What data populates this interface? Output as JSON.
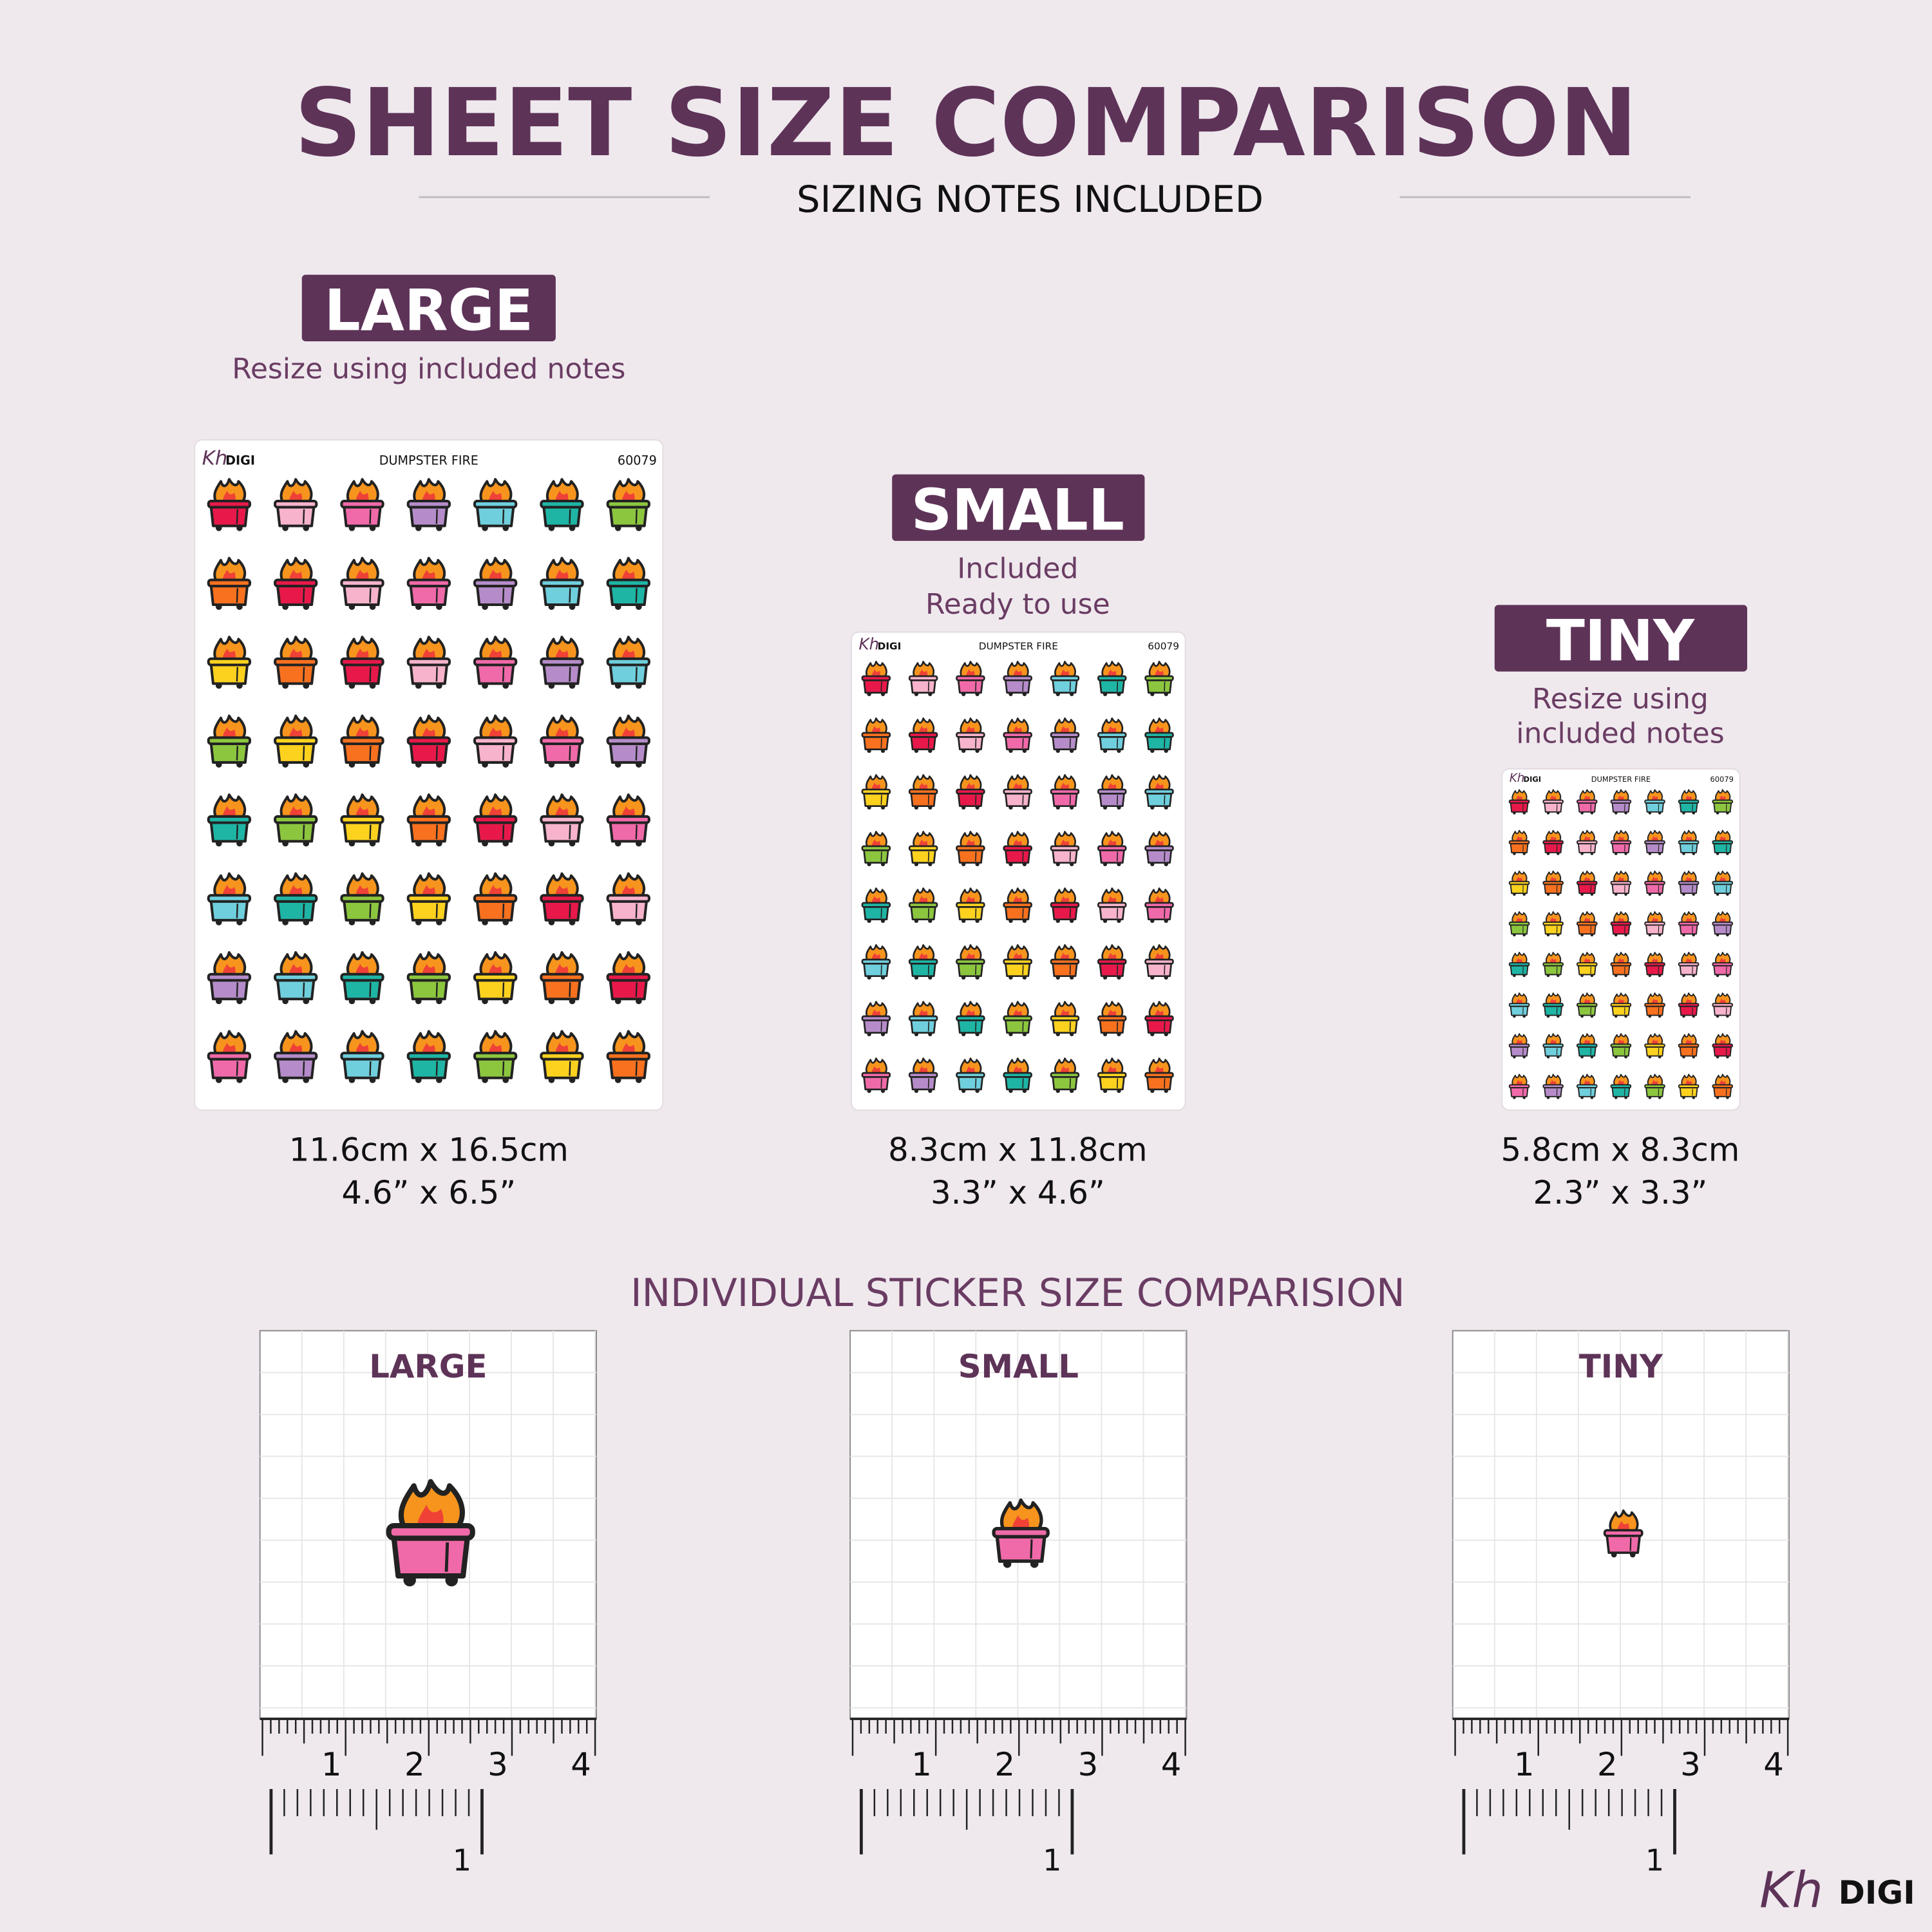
{
  "header": {
    "title": "SHEET SIZE COMPARISON",
    "subtitle": "SIZING NOTES INCLUDED"
  },
  "sheets": [
    {
      "label": "LARGE",
      "note": [
        "Resize using included notes"
      ],
      "sheet_title": "DUMPSTER FIRE",
      "sheet_code": "60079",
      "metric": "11.6cm x 16.5cm",
      "imperial": "4.6” x 6.5”"
    },
    {
      "label": "SMALL",
      "note": [
        "Included",
        "Ready to use"
      ],
      "sheet_title": "DUMPSTER FIRE",
      "sheet_code": "60079",
      "metric": "8.3cm x 11.8cm",
      "imperial": "3.3” x 4.6”"
    },
    {
      "label": "TINY",
      "note": [
        "Resize using",
        "included notes"
      ],
      "sheet_title": "DUMPSTER FIRE",
      "sheet_code": "60079",
      "metric": "5.8cm x 8.3cm",
      "imperial": "2.3” x 3.3”"
    }
  ],
  "individual": {
    "title": "INDIVIDUAL STICKER SIZE COMPARISION",
    "panels": [
      "LARGE",
      "SMALL",
      "TINY"
    ],
    "cm_labels": [
      "1",
      "2",
      "3",
      "4"
    ],
    "inch_label": "1"
  },
  "brand": {
    "script": "Kh",
    "name": "DIGI"
  }
}
